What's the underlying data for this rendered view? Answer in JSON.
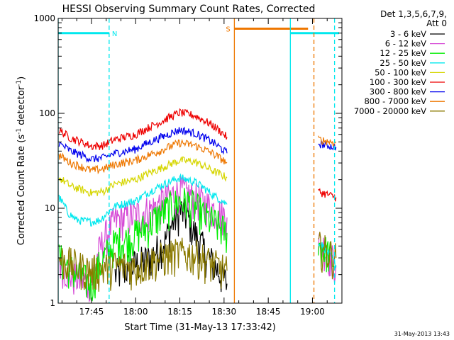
{
  "title": "HESSI Observing Summary Count Rates, Corrected",
  "footer_timestamp": "31-May-2013 13:43",
  "chart_data": {
    "type": "line",
    "xlabel": "Start Time (31-May-13 17:33:42)",
    "ylabel": "Corrected Count Rate (s",
    "ylabel_sup1": "-1",
    "ylabel_mid": " detector",
    "ylabel_sup2": "-1",
    "ylabel_end": ")",
    "y_scale": "log",
    "ylim": [
      1,
      1000
    ],
    "xlim": [
      "17:33:42",
      "19:10:00"
    ],
    "x_ticks": [
      "17:45",
      "18:00",
      "18:15",
      "18:30",
      "18:45",
      "19:00"
    ],
    "y_ticks": [
      "1",
      "10",
      "100",
      "1000"
    ],
    "legend": {
      "header": [
        "Det 1,3,5,6,7,9,",
        "Att 0"
      ],
      "placement": "right"
    },
    "series": [
      {
        "name": "3 - 6 keV",
        "color": "#000000",
        "points": [
          [
            "17:53:00",
            2.0
          ],
          [
            "18:05:00",
            3.0
          ],
          [
            "18:10:00",
            4.5
          ],
          [
            "18:13:00",
            7.5
          ],
          [
            "18:15:00",
            9.5
          ],
          [
            "18:17:00",
            8.5
          ],
          [
            "18:20:00",
            5.5
          ],
          [
            "18:24:00",
            3.2
          ],
          [
            "18:28:00",
            2.2
          ],
          [
            "18:31:00",
            1.6
          ]
        ]
      },
      {
        "name": "6 - 12 keV",
        "color": "#d64bd6",
        "points": [
          [
            "17:34:00",
            2.8
          ],
          [
            "17:38:00",
            2.0
          ],
          [
            "17:45:00",
            1.6
          ],
          [
            "17:53:00",
            7.5
          ],
          [
            "18:00:00",
            8.5
          ],
          [
            "18:06:00",
            10.0
          ],
          [
            "18:12:00",
            13.5
          ],
          [
            "18:15:00",
            15.5
          ],
          [
            "18:18:00",
            14.0
          ],
          [
            "18:24:00",
            11.0
          ],
          [
            "18:31:00",
            8.0
          ],
          [
            "19:02:00",
            4.5
          ],
          [
            "19:05:00",
            3.5
          ],
          [
            "19:08:00",
            2.5
          ]
        ]
      },
      {
        "name": "12 - 25 keV",
        "color": "#00ee00",
        "points": [
          [
            "17:34:00",
            3.0
          ],
          [
            "17:40:00",
            2.0
          ],
          [
            "17:45:00",
            1.6
          ],
          [
            "17:53:00",
            4.3
          ],
          [
            "17:58:00",
            4.8
          ],
          [
            "18:04:00",
            6.5
          ],
          [
            "18:10:00",
            9.5
          ],
          [
            "18:15:00",
            12.0
          ],
          [
            "18:18:00",
            11.5
          ],
          [
            "18:24:00",
            8.0
          ],
          [
            "18:31:00",
            5.5
          ],
          [
            "19:02:00",
            4.0
          ],
          [
            "19:05:00",
            3.5
          ],
          [
            "19:08:00",
            2.5
          ]
        ]
      },
      {
        "name": "25 - 50 keV",
        "color": "#00e8ee",
        "points": [
          [
            "17:34:00",
            13.0
          ],
          [
            "17:37:00",
            9.0
          ],
          [
            "17:40:00",
            7.5
          ],
          [
            "17:45:00",
            7.2
          ],
          [
            "17:48:00",
            7.5
          ],
          [
            "17:53:00",
            10.5
          ],
          [
            "18:00:00",
            12.0
          ],
          [
            "18:08:00",
            17.0
          ],
          [
            "18:15:00",
            21.0
          ],
          [
            "18:20:00",
            19.0
          ],
          [
            "18:26:00",
            14.0
          ],
          [
            "18:31:00",
            11.0
          ],
          [
            "19:02:00",
            4.5
          ],
          [
            "19:05:00",
            3.5
          ],
          [
            "19:08:00",
            2.5
          ]
        ]
      },
      {
        "name": "50 - 100 keV",
        "color": "#d6d600",
        "points": [
          [
            "17:34:00",
            21.0
          ],
          [
            "17:38:00",
            17.0
          ],
          [
            "17:45:00",
            14.5
          ],
          [
            "17:49:00",
            15.0
          ],
          [
            "17:53:00",
            18.0
          ],
          [
            "18:00:00",
            20.0
          ],
          [
            "18:08:00",
            26.0
          ],
          [
            "18:15:00",
            32.0
          ],
          [
            "18:20:00",
            31.0
          ],
          [
            "18:26:00",
            25.0
          ],
          [
            "18:31:00",
            21.0
          ]
        ]
      },
      {
        "name": "100 - 300 keV",
        "color": "#ee0000",
        "points": [
          [
            "17:34:00",
            66.0
          ],
          [
            "17:38:00",
            55.0
          ],
          [
            "17:45:00",
            45.0
          ],
          [
            "17:49:00",
            46.0
          ],
          [
            "17:53:00",
            53.0
          ],
          [
            "18:00:00",
            60.0
          ],
          [
            "18:08:00",
            80.0
          ],
          [
            "18:15:00",
            102.0
          ],
          [
            "18:20:00",
            95.0
          ],
          [
            "18:26:00",
            75.0
          ],
          [
            "18:31:00",
            56.0
          ],
          [
            "19:02:00",
            15.0
          ],
          [
            "19:05:00",
            14.0
          ],
          [
            "19:08:00",
            13.0
          ]
        ]
      },
      {
        "name": "300 - 800 keV",
        "color": "#0000ee",
        "points": [
          [
            "17:34:00",
            48.0
          ],
          [
            "17:38:00",
            40.0
          ],
          [
            "17:45:00",
            33.0
          ],
          [
            "17:49:00",
            34.0
          ],
          [
            "17:53:00",
            38.0
          ],
          [
            "18:00:00",
            42.0
          ],
          [
            "18:08:00",
            55.0
          ],
          [
            "18:15:00",
            67.0
          ],
          [
            "18:20:00",
            62.0
          ],
          [
            "18:26:00",
            50.0
          ],
          [
            "18:31:00",
            38.0
          ],
          [
            "19:02:00",
            48.0
          ],
          [
            "19:05:00",
            46.0
          ],
          [
            "19:08:00",
            44.0
          ]
        ]
      },
      {
        "name": "800 - 7000 keV",
        "color": "#ee7700",
        "points": [
          [
            "17:34:00",
            36.0
          ],
          [
            "17:38:00",
            30.0
          ],
          [
            "17:45:00",
            25.0
          ],
          [
            "17:49:00",
            26.0
          ],
          [
            "17:53:00",
            29.0
          ],
          [
            "18:00:00",
            32.0
          ],
          [
            "18:08:00",
            40.0
          ],
          [
            "18:15:00",
            49.0
          ],
          [
            "18:20:00",
            46.0
          ],
          [
            "18:26:00",
            38.0
          ],
          [
            "18:31:00",
            30.0
          ],
          [
            "19:02:00",
            53.0
          ],
          [
            "19:05:00",
            51.0
          ],
          [
            "19:08:00",
            49.0
          ]
        ]
      },
      {
        "name": "7000 - 20000 keV",
        "color": "#8b7a00",
        "points": [
          [
            "17:34:00",
            3.0
          ],
          [
            "17:40:00",
            2.5
          ],
          [
            "17:45:00",
            2.2
          ],
          [
            "17:53:00",
            2.5
          ],
          [
            "18:00:00",
            2.4
          ],
          [
            "18:08:00",
            3.0
          ],
          [
            "18:15:00",
            3.4
          ],
          [
            "18:20:00",
            3.3
          ],
          [
            "18:26:00",
            2.6
          ],
          [
            "18:31:00",
            2.2
          ],
          [
            "19:02:00",
            4.0
          ],
          [
            "19:05:00",
            3.5
          ],
          [
            "19:08:00",
            3.0
          ]
        ]
      }
    ],
    "flag_lines": [
      {
        "label": "N",
        "color": "#00e8ee",
        "level": 700,
        "start": "17:33:42",
        "end": "17:51:00"
      },
      {
        "label": "S",
        "color": "#ee7700",
        "level": 780,
        "start": "18:33:30",
        "end": "18:58:30"
      },
      {
        "label": "",
        "color": "#00e8ee",
        "level": 700,
        "start": "18:52:30",
        "end": "19:09:00"
      }
    ],
    "vertical_markers": [
      {
        "time": "17:33:42",
        "color": "#00e8ee",
        "style": "solid"
      },
      {
        "time": "17:51:00",
        "color": "#00e8ee",
        "style": "dashed"
      },
      {
        "time": "18:33:30",
        "color": "#ee7700",
        "style": "solid"
      },
      {
        "time": "18:52:30",
        "color": "#00e8ee",
        "style": "solid"
      },
      {
        "time": "19:00:30",
        "color": "#ee7700",
        "style": "dashed"
      },
      {
        "time": "19:07:30",
        "color": "#00e8ee",
        "style": "dashed"
      }
    ]
  }
}
